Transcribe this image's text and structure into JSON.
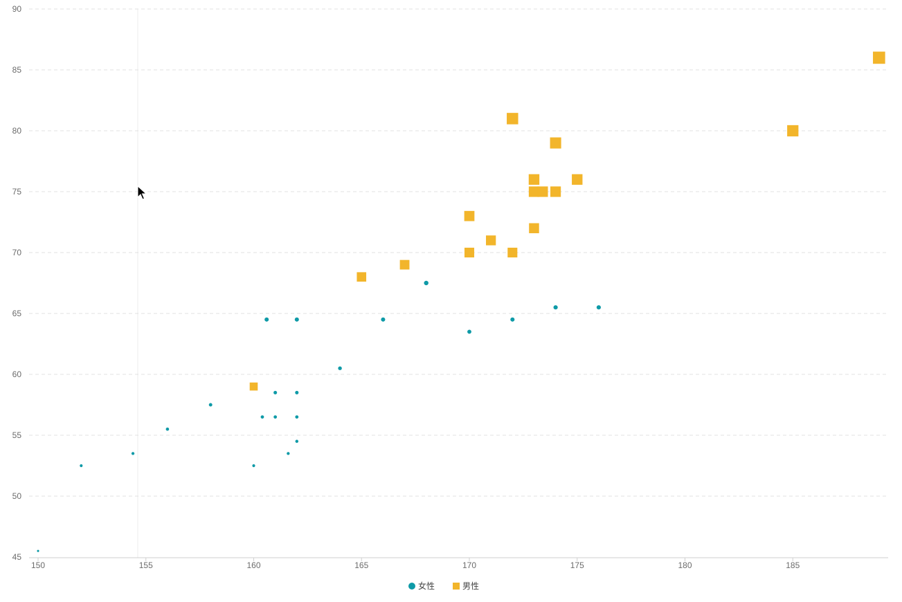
{
  "chart_data": {
    "type": "scatter",
    "xlim": [
      150,
      189.5
    ],
    "ylim": [
      45,
      90
    ],
    "x_ticks": [
      150,
      155,
      160,
      165,
      170,
      175,
      180,
      185
    ],
    "y_ticks": [
      45,
      50,
      55,
      60,
      65,
      70,
      75,
      80,
      85,
      90
    ],
    "grid": "horizontal-dashed",
    "legend_position": "bottom-center",
    "series": [
      {
        "name": "女性",
        "marker": "circle",
        "color": "#0e9aa7",
        "points": [
          [
            150,
            45.5
          ],
          [
            152,
            52.5
          ],
          [
            154.4,
            53.5
          ],
          [
            156,
            55.5
          ],
          [
            158,
            57.5
          ],
          [
            160,
            52.5
          ],
          [
            160.4,
            56.5
          ],
          [
            160.6,
            64.5
          ],
          [
            161,
            56.5
          ],
          [
            161,
            58.5
          ],
          [
            161.6,
            53.5
          ],
          [
            162,
            54.5
          ],
          [
            162,
            56.5
          ],
          [
            162,
            58.5
          ],
          [
            162,
            64.5
          ],
          [
            164,
            60.5
          ],
          [
            166,
            64.5
          ],
          [
            168,
            67.5
          ],
          [
            170,
            63.5
          ],
          [
            172,
            64.5
          ],
          [
            174,
            65.5
          ],
          [
            176,
            65.5
          ]
        ]
      },
      {
        "name": "男性",
        "marker": "square",
        "color": "#f2b52b",
        "points": [
          [
            160,
            59
          ],
          [
            165,
            68
          ],
          [
            167,
            69
          ],
          [
            170,
            70
          ],
          [
            170,
            73
          ],
          [
            171,
            71
          ],
          [
            172,
            70
          ],
          [
            172,
            81
          ],
          [
            173,
            72
          ],
          [
            173,
            75
          ],
          [
            173,
            76
          ],
          [
            173.4,
            75
          ],
          [
            174,
            75
          ],
          [
            174,
            79
          ],
          [
            175,
            76
          ],
          [
            185,
            80
          ],
          [
            189,
            86
          ]
        ]
      }
    ]
  }
}
